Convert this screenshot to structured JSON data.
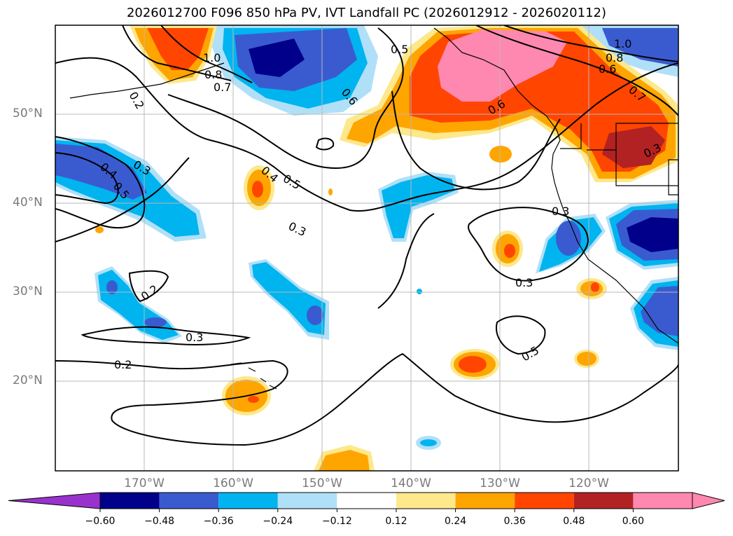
{
  "title": "2026012700 F096 850 hPa PV, IVT Landfall PC (2026012912 - 2026020112)",
  "map": {
    "lat_labels": [
      "50°N",
      "40°N",
      "30°N",
      "20°N"
    ],
    "lon_labels": [
      "170°W",
      "160°W",
      "150°W",
      "140°W",
      "130°W",
      "120°W"
    ],
    "contour_labels": [
      "1.0",
      "0.8",
      "0.7",
      "0.2",
      "0.5",
      "0.6",
      "1.0",
      "0.8",
      "0.6",
      "0.7",
      "0.6",
      "0.3",
      "0.3",
      "0.4",
      "0.5",
      "0.4",
      "0.5",
      "0.3",
      "0.3",
      "0.3",
      "0.2",
      "0.3",
      "0.2",
      "0.5"
    ]
  },
  "colorbar": {
    "ticks": [
      "−0.60",
      "−0.48",
      "−0.36",
      "−0.24",
      "−0.12",
      "0.12",
      "0.24",
      "0.36",
      "0.48",
      "0.60"
    ],
    "colors": [
      "#9932cc",
      "#00008b",
      "#3a5bd0",
      "#00b4f0",
      "#b0e0f8",
      "#ffffff",
      "#fde88c",
      "#ffa500",
      "#ff4500",
      "#b22222",
      "#ff88b0",
      "#ff88b0"
    ]
  },
  "colors": {
    "neg_strong": "#00008b",
    "neg_mid": "#3a5bd0",
    "neg_light": "#00b4f0",
    "neg_pale": "#b0e0f8",
    "pos_pale": "#fde88c",
    "pos_light": "#ffa500",
    "pos_mid": "#ff4500",
    "pos_strong": "#b22222",
    "pos_max": "#ff88b0"
  }
}
